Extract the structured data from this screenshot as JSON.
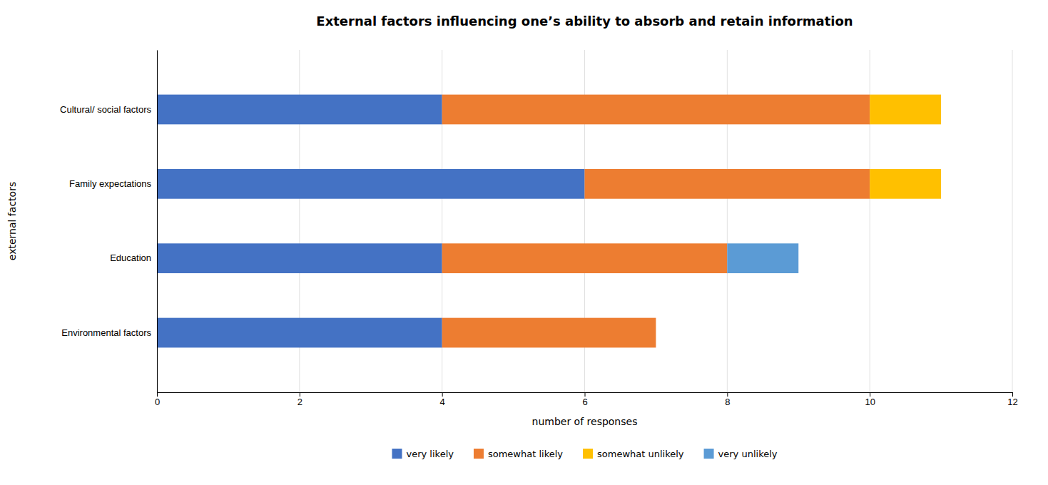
{
  "chart_data": {
    "type": "bar",
    "orientation": "horizontal",
    "stacked": true,
    "title": "External factors influencing one’s ability to absorb and retain information",
    "xlabel": "number of responses",
    "ylabel": "external factors",
    "categories": [
      "Environmental factors",
      "Education",
      "Family expectations",
      "Cultural/ social factors"
    ],
    "series": [
      {
        "name": "very likely",
        "color": "#4472C4",
        "values": [
          4,
          4,
          6,
          4
        ]
      },
      {
        "name": "somewhat likely",
        "color": "#ED7D31",
        "values": [
          3,
          4,
          4,
          6
        ]
      },
      {
        "name": "somewhat unlikely",
        "color": "#FFC000",
        "values": [
          0,
          0,
          1,
          1
        ]
      },
      {
        "name": "very unlikely",
        "color": "#5B9BD5",
        "values": [
          0,
          1,
          0,
          0
        ]
      }
    ],
    "xlim": [
      0,
      12
    ],
    "xticks": [
      0,
      2,
      4,
      6,
      8,
      10,
      12
    ],
    "grid": true,
    "legend": "bottom"
  }
}
